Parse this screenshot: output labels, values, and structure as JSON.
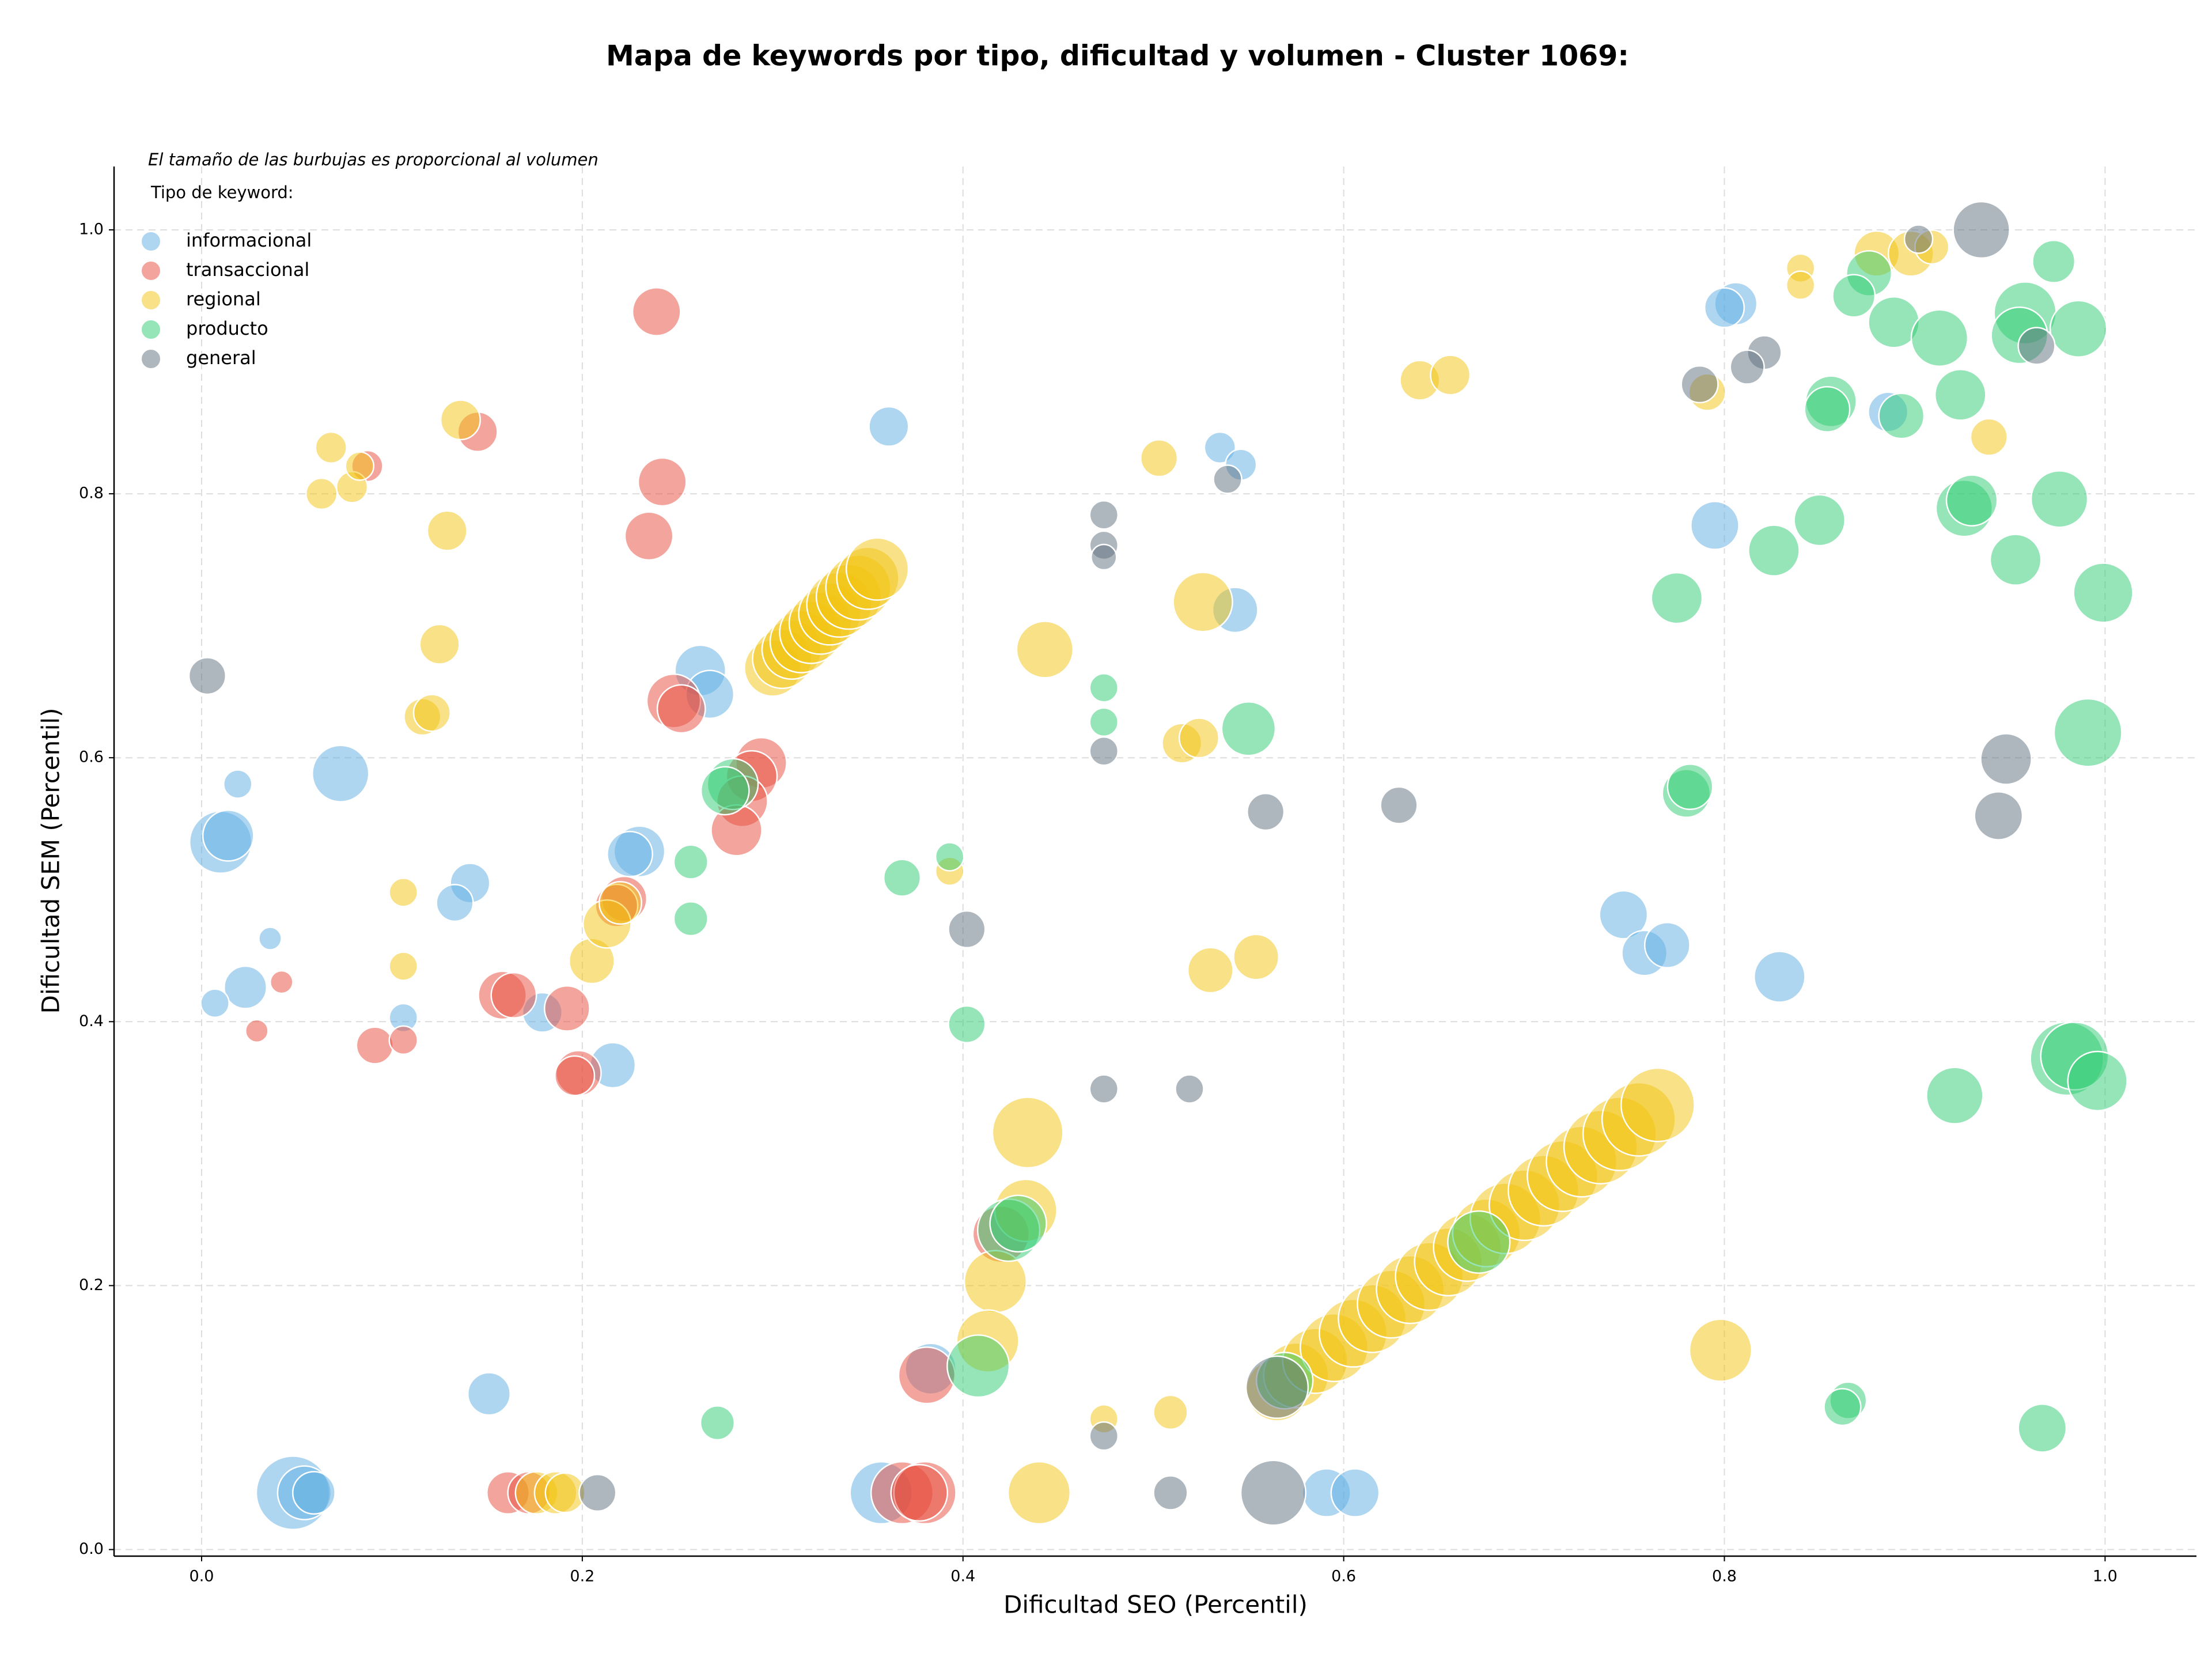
{
  "chart_data": {
    "type": "scatter",
    "title": "Mapa de keywords por tipo, dificultad y volumen - Cluster 1069:",
    "note": "El tamaño de las burbujas es proporcional al volumen",
    "legend_title": "Tipo de keyword:",
    "xlabel": "Dificultad SEO (Percentil)",
    "ylabel": "Dificultad SEM (Percentil)",
    "xlim": [
      -0.046,
      1.048
    ],
    "ylim": [
      -0.005,
      1.048
    ],
    "xticks": [
      {
        "value": 0,
        "label": "0.0"
      },
      0.2,
      0.4,
      0.6,
      0.8,
      {
        "value": 1,
        "label": "1.0"
      }
    ],
    "yticks": [
      {
        "value": 0,
        "label": "0.0"
      },
      0.2,
      0.4,
      0.6,
      0.8,
      {
        "value": 1,
        "label": "1.0"
      }
    ],
    "grid": true,
    "legend": "upper left",
    "series": [
      {
        "name": "informacional",
        "color": "#5DADE2",
        "x": [
          0.806,
          0.8,
          0.361,
          0.535,
          0.546,
          0.795,
          0.543,
          0.886,
          0.262,
          0.267,
          0.073,
          0.019,
          0.01,
          0.014,
          0.23,
          0.225,
          0.141,
          0.133,
          0.036,
          0.023,
          0.007,
          0.106,
          0.179,
          0.216,
          0.747,
          0.758,
          0.77,
          0.829,
          0.151,
          0.048,
          0.054,
          0.059,
          0.357,
          0.383,
          0.591,
          0.606
        ],
        "values": [
          0.944,
          0.941,
          0.851,
          0.835,
          0.822,
          0.776,
          0.712,
          0.862,
          0.666,
          0.648,
          0.588,
          0.58,
          0.536,
          0.541,
          0.529,
          0.527,
          0.505,
          0.49,
          0.463,
          0.426,
          0.414,
          0.403,
          0.407,
          0.367,
          0.481,
          0.452,
          0.458,
          0.434,
          0.118,
          0.043,
          0.043,
          0.043,
          0.043,
          0.137,
          0.043,
          0.043
        ],
        "sizes": [
          225,
          196,
          196,
          121,
          121,
          289,
          256,
          196,
          324,
          289,
          400,
          100,
          484,
          324,
          324,
          256,
          196,
          169,
          64,
          225,
          100,
          100,
          196,
          256,
          289,
          256,
          256,
          324,
          225,
          676,
          361,
          225,
          484,
          324,
          289,
          289
        ]
      },
      {
        "name": "transaccional",
        "color": "#E74C3C",
        "x": [
          0.239,
          0.145,
          0.087,
          0.242,
          0.235,
          0.248,
          0.252,
          0.294,
          0.289,
          0.284,
          0.281,
          0.222,
          0.218,
          0.158,
          0.164,
          0.192,
          0.042,
          0.029,
          0.091,
          0.106,
          0.198,
          0.196,
          0.42,
          0.381,
          0.161,
          0.172,
          0.368,
          0.38,
          0.377
        ],
        "values": [
          0.938,
          0.847,
          0.821,
          0.809,
          0.768,
          0.643,
          0.637,
          0.596,
          0.586,
          0.567,
          0.545,
          0.493,
          0.488,
          0.42,
          0.42,
          0.41,
          0.43,
          0.393,
          0.382,
          0.386,
          0.361,
          0.359,
          0.239,
          0.132,
          0.043,
          0.043,
          0.043,
          0.043,
          0.043
        ],
        "sizes": [
          289,
          196,
          121,
          289,
          289,
          361,
          289,
          324,
          324,
          324,
          324,
          256,
          225,
          289,
          256,
          256,
          64,
          64,
          169,
          100,
          256,
          196,
          400,
          400,
          225,
          225,
          484,
          484,
          400
        ]
      },
      {
        "name": "regional",
        "color": "#F1C40F",
        "x": [
          0.063,
          0.068,
          0.079,
          0.083,
          0.136,
          0.129,
          0.125,
          0.116,
          0.121,
          0.106,
          0.106,
          0.205,
          0.213,
          0.22,
          0.503,
          0.64,
          0.656,
          0.443,
          0.526,
          0.515,
          0.524,
          0.393,
          0.53,
          0.554,
          0.84,
          0.84,
          0.88,
          0.898,
          0.909,
          0.791,
          0.939,
          0.434,
          0.433,
          0.417,
          0.413,
          0.474,
          0.509,
          0.798,
          0.44,
          0.176,
          0.186,
          0.191,
          0.3,
          0.305,
          0.31,
          0.315,
          0.32,
          0.325,
          0.33,
          0.335,
          0.34,
          0.345,
          0.35,
          0.355,
          0.565,
          0.575,
          0.585,
          0.595,
          0.605,
          0.615,
          0.625,
          0.635,
          0.645,
          0.655,
          0.665,
          0.675,
          0.685,
          0.695,
          0.705,
          0.715,
          0.725,
          0.735,
          0.745,
          0.755,
          0.765
        ],
        "values": [
          0.8,
          0.835,
          0.805,
          0.821,
          0.856,
          0.772,
          0.686,
          0.631,
          0.634,
          0.498,
          0.442,
          0.446,
          0.474,
          0.49,
          0.827,
          0.886,
          0.89,
          0.682,
          0.718,
          0.611,
          0.615,
          0.514,
          0.439,
          0.449,
          0.971,
          0.958,
          0.982,
          0.982,
          0.987,
          0.877,
          0.843,
          0.316,
          0.257,
          0.203,
          0.158,
          0.099,
          0.104,
          0.151,
          0.043,
          0.043,
          0.043,
          0.043,
          0.668,
          0.675,
          0.682,
          0.688,
          0.695,
          0.702,
          0.709,
          0.716,
          0.722,
          0.729,
          0.736,
          0.743,
          0.121,
          0.132,
          0.143,
          0.153,
          0.164,
          0.175,
          0.186,
          0.197,
          0.207,
          0.218,
          0.229,
          0.24,
          0.251,
          0.261,
          0.272,
          0.283,
          0.294,
          0.305,
          0.315,
          0.326,
          0.337
        ],
        "sizes": [
          121,
          121,
          121,
          100,
          196,
          196,
          196,
          169,
          169,
          100,
          100,
          256,
          289,
          225,
          169,
          196,
          196,
          400,
          441,
          196,
          196,
          100,
          256,
          256,
          100,
          100,
          256,
          256,
          144,
          169,
          169,
          625,
          484,
          484,
          484,
          100,
          144,
          484,
          484,
          225,
          225,
          196,
          400,
          441,
          441,
          484,
          484,
          484,
          484,
          529,
          529,
          529,
          484,
          484,
          484,
          529,
          529,
          576,
          576,
          576,
          576,
          576,
          576,
          576,
          576,
          576,
          625,
          625,
          625,
          625,
          625,
          676,
          676,
          676,
          676
        ]
      },
      {
        "name": "producto",
        "color": "#2ECC71",
        "x": [
          0.973,
          0.876,
          0.868,
          0.889,
          0.913,
          0.958,
          0.955,
          0.986,
          0.856,
          0.854,
          0.893,
          0.924,
          0.926,
          0.93,
          0.976,
          0.85,
          0.826,
          0.953,
          0.999,
          0.775,
          0.991,
          0.55,
          0.78,
          0.782,
          0.474,
          0.474,
          0.393,
          0.368,
          0.257,
          0.257,
          0.402,
          0.279,
          0.275,
          0.98,
          0.984,
          0.996,
          0.921,
          0.424,
          0.429,
          0.671,
          0.408,
          0.569,
          0.271,
          0.865,
          0.862,
          0.967
        ],
        "values": [
          0.976,
          0.967,
          0.95,
          0.93,
          0.918,
          0.937,
          0.92,
          0.925,
          0.87,
          0.864,
          0.859,
          0.875,
          0.789,
          0.795,
          0.796,
          0.78,
          0.757,
          0.75,
          0.725,
          0.721,
          0.619,
          0.622,
          0.573,
          0.578,
          0.653,
          0.627,
          0.525,
          0.509,
          0.521,
          0.478,
          0.398,
          0.58,
          0.575,
          0.372,
          0.374,
          0.355,
          0.344,
          0.242,
          0.247,
          0.233,
          0.139,
          0.128,
          0.096,
          0.113,
          0.108,
          0.092
        ],
        "sizes": [
          225,
          256,
          225,
          324,
          400,
          484,
          400,
          400,
          324,
          256,
          256,
          324,
          400,
          324,
          400,
          324,
          324,
          324,
          441,
          324,
          576,
          361,
          289,
          256,
          100,
          100,
          100,
          169,
          144,
          144,
          169,
          324,
          289,
          676,
          576,
          441,
          400,
          484,
          400,
          484,
          484,
          400,
          144,
          169,
          169,
          289
        ]
      },
      {
        "name": "general",
        "color": "#5D6D7E",
        "x": [
          0.935,
          0.902,
          0.821,
          0.812,
          0.787,
          0.964,
          0.539,
          0.474,
          0.474,
          0.474,
          0.003,
          0.474,
          0.559,
          0.629,
          0.948,
          0.944,
          0.402,
          0.474,
          0.519,
          0.565,
          0.474,
          0.208,
          0.509,
          0.563
        ],
        "values": [
          1.0,
          0.993,
          0.907,
          0.896,
          0.883,
          0.912,
          0.811,
          0.784,
          0.761,
          0.752,
          0.662,
          0.605,
          0.559,
          0.564,
          0.599,
          0.556,
          0.47,
          0.349,
          0.349,
          0.123,
          0.086,
          0.043,
          0.043,
          0.043
        ],
        "sizes": [
          400,
          100,
          144,
          144,
          169,
          169,
          100,
          100,
          100,
          81,
          169,
          100,
          169,
          169,
          324,
          289,
          169,
          100,
          100,
          484,
          100,
          169,
          144,
          529
        ]
      }
    ]
  }
}
